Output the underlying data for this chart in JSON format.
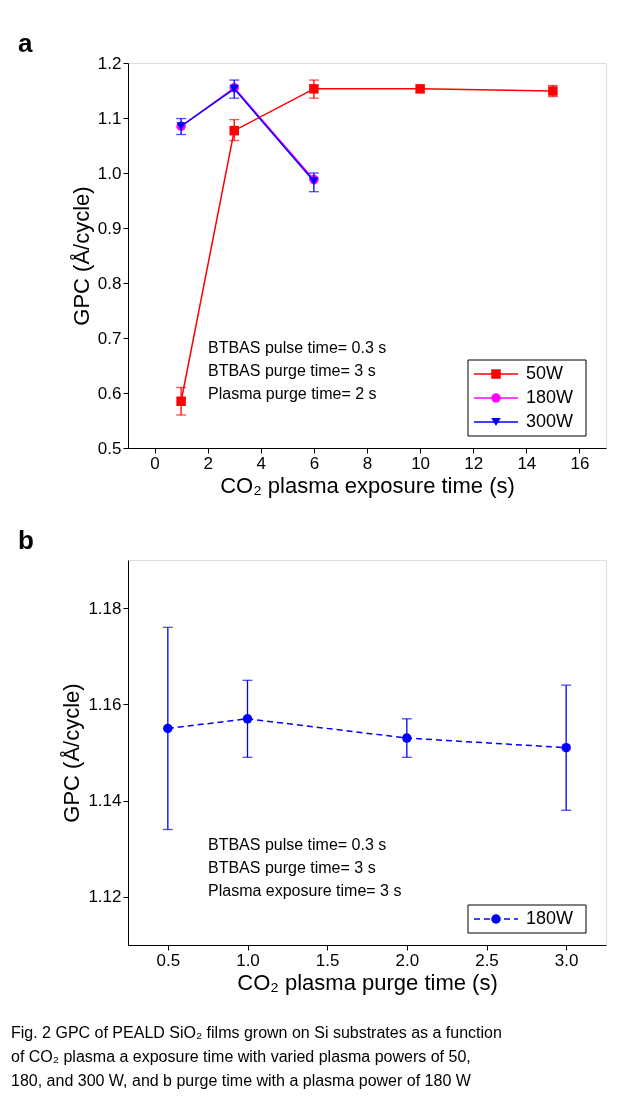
{
  "chart_data": [
    {
      "type": "line",
      "xlabel": "CO₂ plasma exposure time (s)",
      "ylabel": "GPC (Å/cycle)",
      "xlim": [
        -1,
        17
      ],
      "xticks": [
        0,
        2,
        4,
        6,
        8,
        10,
        12,
        14,
        16
      ],
      "ylim": [
        0.5,
        1.2
      ],
      "yticks": [
        0.5,
        0.6,
        0.7,
        0.8,
        0.9,
        {
          "value": 1.0,
          "label": "1.0"
        },
        1.1,
        1.2
      ],
      "grid": false,
      "legend": "bottom right",
      "line_style": "solid",
      "annotations": [
        "a",
        "BTBAS pulse time= 0.3 s",
        "BTBAS purge time= 3 s",
        "Plasma purge time= 2 s"
      ],
      "series": [
        {
          "name": "50W",
          "color": "#ff0000",
          "marker": "square",
          "x": [
            1,
            3,
            6,
            10,
            15
          ],
          "values": [
            0.585,
            1.077,
            1.153,
            1.153,
            1.149
          ],
          "errors": [
            [
              0.56,
              0.61
            ],
            [
              1.059,
              1.097
            ],
            [
              1.136,
              1.169
            ],
            null,
            [
              1.139,
              1.159
            ]
          ]
        },
        {
          "name": "180W",
          "color": "#ff00ff",
          "marker": "circle",
          "x": [
            1,
            3,
            6
          ],
          "values": [
            1.085,
            1.155,
            0.988
          ]
        },
        {
          "name": "300W",
          "color": "#0000ff",
          "marker": "triangle",
          "x": [
            1,
            3,
            6
          ],
          "values": [
            1.085,
            1.153,
            0.985
          ],
          "errors": [
            [
              1.07,
              1.099
            ],
            [
              1.136,
              1.169
            ],
            [
              0.966,
              1.0
            ]
          ]
        }
      ]
    },
    {
      "type": "line",
      "xlabel": "CO₂ plasma purge time (s)",
      "ylabel": "GPC (Å/cycle)",
      "xlim": [
        0.25,
        3.25
      ],
      "xticks": [
        0.5,
        {
          "value": 1.0,
          "label": "1.0"
        },
        1.5,
        {
          "value": 2.0,
          "label": "2.0"
        },
        2.5,
        {
          "value": 3.0,
          "label": "3.0"
        }
      ],
      "ylim": [
        1.11,
        1.19
      ],
      "yticks": [
        1.12,
        1.14,
        1.16,
        1.18
      ],
      "grid": false,
      "legend": "bottom right",
      "line_style": "dashed",
      "annotations": [
        "b",
        "BTBAS pulse time= 0.3 s",
        "BTBAS purge time= 3 s",
        "Plasma exposure time= 3 s",
        "Fig. 2 GPC of PEALD SiO₂ films grown on Si substrates as a function",
        "of CO₂ plasma a exposure time with varied plasma powers of 50,",
        "180, and 300 W, and b purge time with a plasma power of 180 W"
      ],
      "series": [
        {
          "name": "180W",
          "color": "#0000ff",
          "marker": "circle",
          "x": [
            0.5,
            1.0,
            2.0,
            3.0
          ],
          "values": [
            1.155,
            1.157,
            1.153,
            1.151
          ],
          "errors": [
            [
              1.134,
              1.176
            ],
            [
              1.149,
              1.165
            ],
            [
              1.149,
              1.157
            ],
            [
              1.138,
              1.164
            ]
          ]
        }
      ]
    }
  ]
}
